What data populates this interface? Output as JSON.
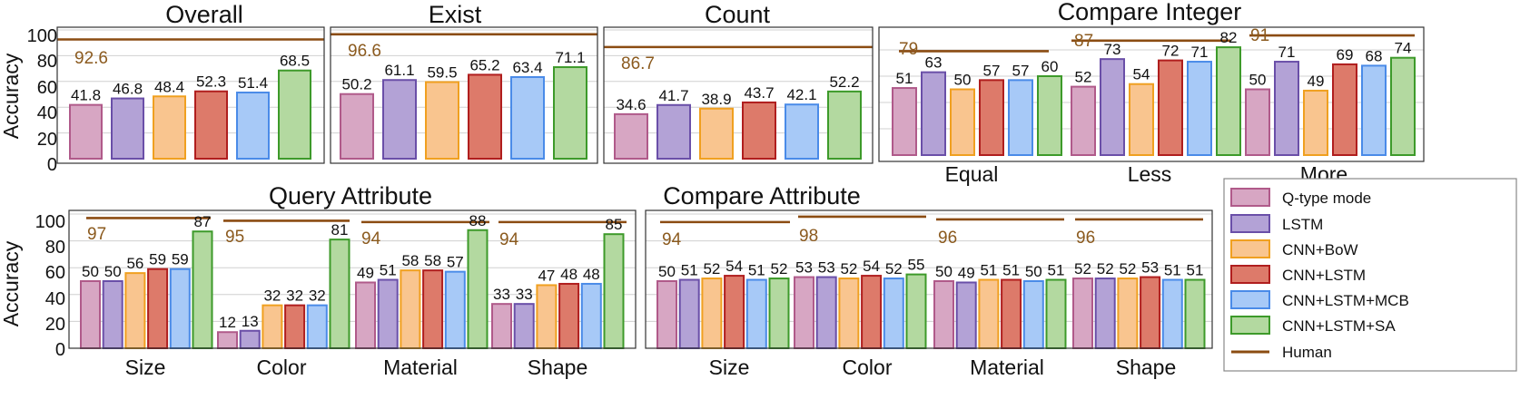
{
  "chart_data": [
    {
      "type": "bar",
      "title": "Overall",
      "ylabel": "Accuracy",
      "ylim": [
        0,
        110
      ],
      "yticks": [
        "0",
        "20",
        "40",
        "60",
        "80",
        "100"
      ],
      "groups": [
        {
          "label": "",
          "values": [
            41.8,
            46.8,
            48.4,
            52.3,
            51.4,
            68.5
          ],
          "labels": [
            "41.8",
            "46.8",
            "48.4",
            "52.3",
            "51.4",
            "68.5"
          ],
          "human": 92.6,
          "human_label": "92.6"
        }
      ]
    },
    {
      "type": "bar",
      "title": "Exist",
      "ylim": [
        0,
        110
      ],
      "groups": [
        {
          "label": "",
          "values": [
            50.2,
            61.1,
            59.5,
            65.2,
            63.4,
            71.1
          ],
          "labels": [
            "50.2",
            "61.1",
            "59.5",
            "65.2",
            "63.4",
            "71.1"
          ],
          "human": 96.6,
          "human_label": "96.6"
        }
      ]
    },
    {
      "type": "bar",
      "title": "Count",
      "ylim": [
        0,
        110
      ],
      "groups": [
        {
          "label": "",
          "values": [
            34.6,
            41.7,
            38.9,
            43.7,
            42.1,
            52.2
          ],
          "labels": [
            "34.6",
            "41.7",
            "38.9",
            "43.7",
            "42.1",
            "52.2"
          ],
          "human": 86.7,
          "human_label": "86.7"
        }
      ]
    },
    {
      "type": "bar",
      "title": "Compare Integer",
      "ylim": [
        0,
        110
      ],
      "groups": [
        {
          "label": "Equal",
          "values": [
            51,
            63,
            50,
            57,
            57,
            60
          ],
          "labels": [
            "51",
            "63",
            "50",
            "57",
            "57",
            "60"
          ],
          "human": 79,
          "human_label": "79"
        },
        {
          "label": "Less",
          "values": [
            52,
            73,
            54,
            72,
            71,
            82
          ],
          "labels": [
            "52",
            "73",
            "54",
            "72",
            "71",
            "82"
          ],
          "human": 87,
          "human_label": "87"
        },
        {
          "label": "More",
          "values": [
            50,
            71,
            49,
            69,
            68,
            74
          ],
          "labels": [
            "50",
            "71",
            "49",
            "69",
            "68",
            "74"
          ],
          "human": 91,
          "human_label": "91"
        }
      ]
    },
    {
      "type": "bar",
      "title": "Query Attribute",
      "ylabel": "Accuracy",
      "ylim": [
        0,
        110
      ],
      "yticks": [
        "0",
        "20",
        "40",
        "60",
        "80",
        "100"
      ],
      "groups": [
        {
          "label": "Size",
          "values": [
            50,
            50,
            56,
            59,
            59,
            87
          ],
          "labels": [
            "50",
            "50",
            "56",
            "59",
            "59",
            "87"
          ],
          "human": 97,
          "human_label": "97"
        },
        {
          "label": "Color",
          "values": [
            12,
            13,
            32,
            32,
            32,
            81
          ],
          "labels": [
            "12",
            "13",
            "32",
            "32",
            "32",
            "81"
          ],
          "human": 95,
          "human_label": "95"
        },
        {
          "label": "Material",
          "values": [
            49,
            51,
            58,
            58,
            57,
            88
          ],
          "labels": [
            "49",
            "51",
            "58",
            "58",
            "57",
            "88"
          ],
          "human": 94,
          "human_label": "94"
        },
        {
          "label": "Shape",
          "values": [
            33,
            33,
            47,
            48,
            48,
            85
          ],
          "labels": [
            "33",
            "33",
            "47",
            "48",
            "48",
            "85"
          ],
          "human": 94,
          "human_label": "94"
        }
      ]
    },
    {
      "type": "bar",
      "title": "Compare Attribute",
      "ylim": [
        0,
        110
      ],
      "groups": [
        {
          "label": "Size",
          "values": [
            50,
            51,
            52,
            54,
            51,
            52
          ],
          "labels": [
            "50",
            "51",
            "52",
            "54",
            "51",
            "52"
          ],
          "human": 94,
          "human_label": "94"
        },
        {
          "label": "Color",
          "values": [
            53,
            53,
            52,
            54,
            52,
            55
          ],
          "labels": [
            "53",
            "53",
            "52",
            "54",
            "52",
            "55"
          ],
          "human": 98,
          "human_label": "98"
        },
        {
          "label": "Material",
          "values": [
            50,
            49,
            51,
            51,
            50,
            51
          ],
          "labels": [
            "50",
            "49",
            "51",
            "51",
            "50",
            "51"
          ],
          "human": 96,
          "human_label": "96"
        },
        {
          "label": "Shape",
          "values": [
            52,
            52,
            52,
            53,
            51,
            51
          ],
          "labels": [
            "52",
            "52",
            "52",
            "53",
            "51",
            "51"
          ],
          "human": 96,
          "human_label": "96"
        }
      ]
    }
  ],
  "legend": {
    "items": [
      {
        "label": "Q-type mode",
        "fill": "#D7A6C3",
        "stroke": "#B05A8A"
      },
      {
        "label": "LSTM",
        "fill": "#B3A2D6",
        "stroke": "#6A4FA8"
      },
      {
        "label": "CNN+BoW",
        "fill": "#F9C58F",
        "stroke": "#F0A020"
      },
      {
        "label": "CNN+LSTM",
        "fill": "#DD7A6A",
        "stroke": "#B01E1E"
      },
      {
        "label": "CNN+LSTM+MCB",
        "fill": "#A7C9F7",
        "stroke": "#4A8BE8"
      },
      {
        "label": "CNN+LSTM+SA",
        "fill": "#B3D9A0",
        "stroke": "#3D9A2A"
      }
    ],
    "human": {
      "label": "Human",
      "color": "#8B4C12"
    }
  }
}
